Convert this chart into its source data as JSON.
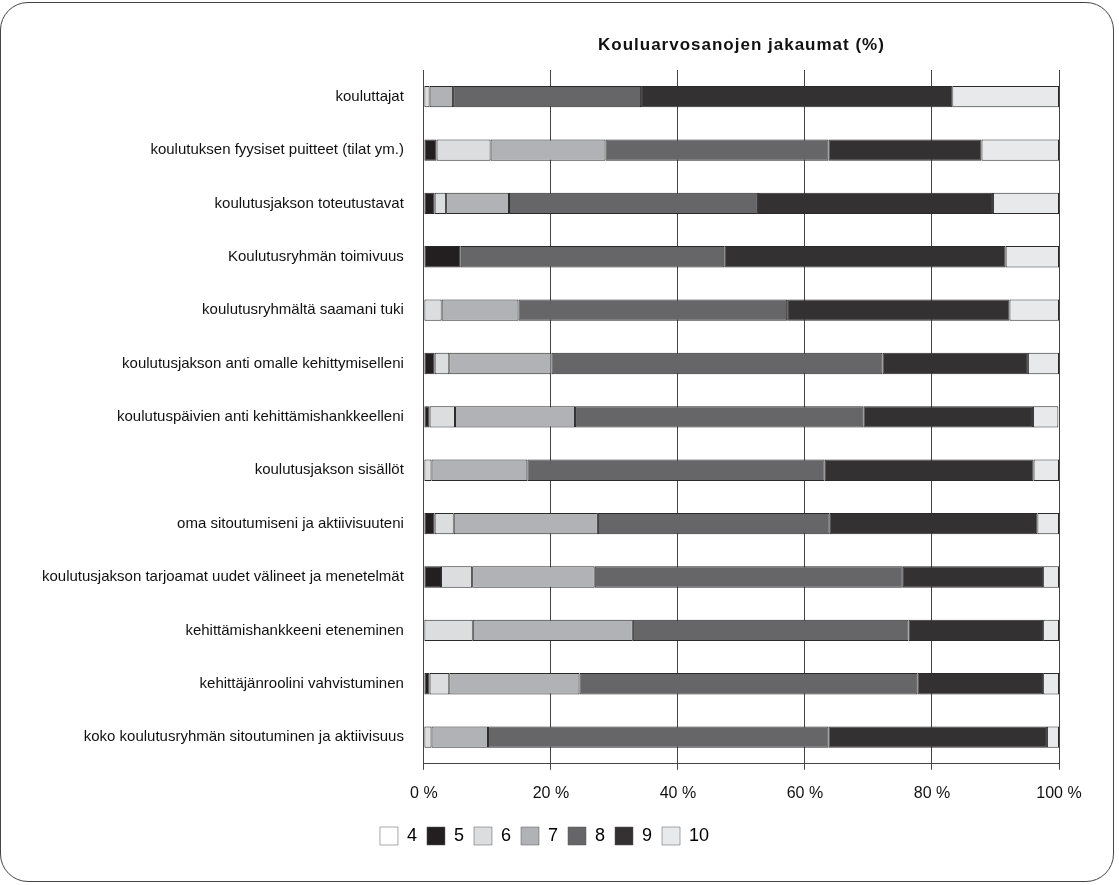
{
  "chart_data": {
    "type": "bar",
    "orientation": "horizontal",
    "stacked": true,
    "title": "Kouluarvosanojen jakaumat (%)",
    "categories": [
      "kouluttajat",
      "koulutuksen fyysiset puitteet (tilat ym.)",
      "koulutusjakson toteutustavat",
      "Koulutusryhmän toimivuus",
      "koulutusryhmältä saamani tuki",
      "koulutusjakson anti omalle kehittymiselleni",
      "koulutuspäivien anti kehittämishankkeelleni",
      "koulutusjakson sisällöt",
      "oma sitoutumiseni ja aktiivisuuteni",
      "koulutusjakson tarjoamat uudet välineet ja menetelmät",
      "kehittämishankkeeni eteneminen",
      "kehittäjänroolini vahvistuminen",
      "koko koulutusryhmän sitoutuminen ja aktiivisuus"
    ],
    "series": [
      {
        "name": "4",
        "color": "#ffffff",
        "values": [
          0,
          0,
          0,
          0,
          0,
          0,
          0,
          0,
          0,
          0,
          0,
          0,
          0
        ]
      },
      {
        "name": "5",
        "color": "#231f20",
        "values": [
          0,
          2.0,
          1.7,
          5.8,
          0,
          1.7,
          0.9,
          0,
          1.7,
          2.7,
          0,
          0.9,
          0
        ]
      },
      {
        "name": "6",
        "color": "#dcdddf",
        "values": [
          0.9,
          8.5,
          1.8,
          0,
          2.8,
          2.3,
          4.0,
          1.2,
          3.0,
          4.9,
          7.7,
          3.1,
          1.2
        ]
      },
      {
        "name": "7",
        "color": "#b1b2b5",
        "values": [
          3.7,
          18.1,
          9.9,
          0,
          12.1,
          16.1,
          18.9,
          15.1,
          22.7,
          19.3,
          25.2,
          20.5,
          8.9
        ]
      },
      {
        "name": "8",
        "color": "#666668",
        "values": [
          29.6,
          35.1,
          39.2,
          41.5,
          42.3,
          52.1,
          45.4,
          46.8,
          36.5,
          48.5,
          43.4,
          53.2,
          53.6
        ]
      },
      {
        "name": "9",
        "color": "#333132",
        "values": [
          49.0,
          24.1,
          37.0,
          44.3,
          35.0,
          22.9,
          26.7,
          32.9,
          32.7,
          22.1,
          21.2,
          19.8,
          34.4
        ]
      },
      {
        "name": "10",
        "color": "#e8e9eb",
        "values": [
          16.8,
          12.2,
          10.4,
          8.4,
          7.8,
          4.9,
          4.0,
          4.0,
          3.4,
          2.5,
          2.5,
          2.5,
          1.9
        ]
      }
    ],
    "xlim": [
      0,
      100
    ],
    "xticks": [
      {
        "value": 0,
        "label": "0 %"
      },
      {
        "value": 20,
        "label": "20 %"
      },
      {
        "value": 40,
        "label": "40 %"
      },
      {
        "value": 60,
        "label": "60 %"
      },
      {
        "value": 80,
        "label": "80 %"
      },
      {
        "value": 100,
        "label": "100 %"
      }
    ],
    "grid": "x",
    "legend": "bottom"
  }
}
